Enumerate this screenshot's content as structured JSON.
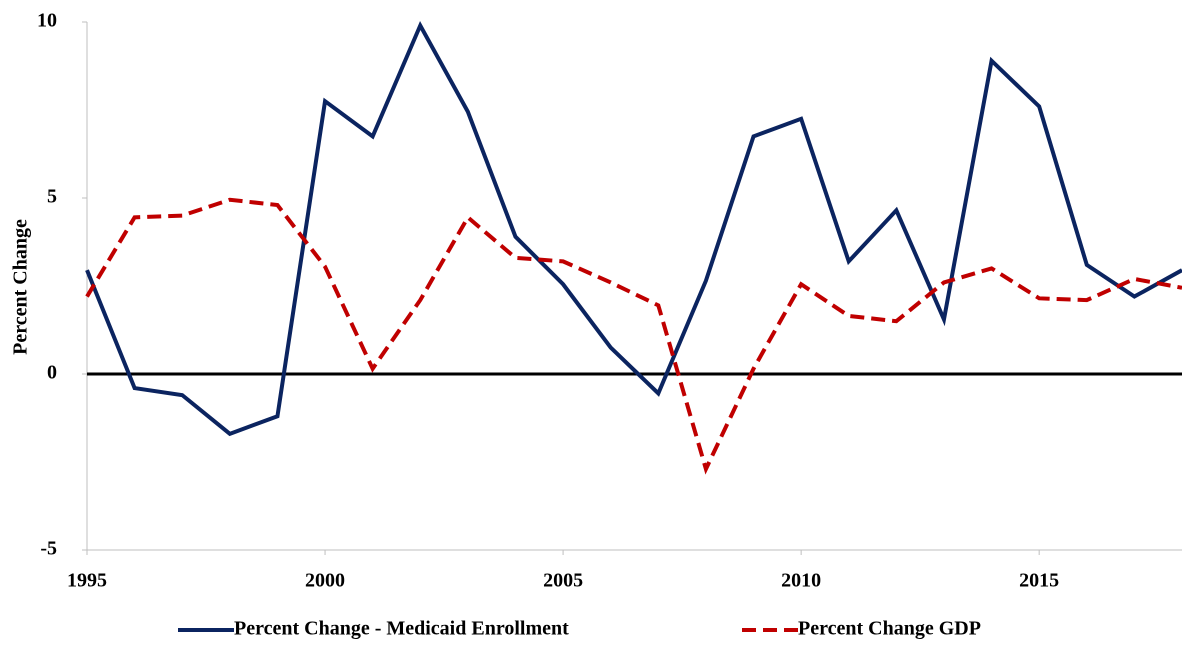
{
  "chart_data": {
    "type": "line",
    "ylabel": "Percent Change",
    "x": [
      1995,
      1996,
      1997,
      1998,
      1999,
      2000,
      2001,
      2002,
      2003,
      2004,
      2005,
      2006,
      2007,
      2008,
      2009,
      2010,
      2011,
      2012,
      2013,
      2014,
      2015,
      2016,
      2017,
      2018
    ],
    "series": [
      {
        "name": "Percent Change - Medicaid Enrollment",
        "color": "#0b2460",
        "dash": false,
        "values": [
          2.95,
          -0.4,
          -0.6,
          -1.7,
          -1.2,
          7.75,
          6.75,
          9.9,
          7.45,
          3.9,
          2.55,
          0.75,
          -0.55,
          2.65,
          6.75,
          7.25,
          3.2,
          4.65,
          1.55,
          8.9,
          7.6,
          3.1,
          2.2,
          2.95
        ]
      },
      {
        "name": "Percent Change GDP",
        "color": "#c00000",
        "dash": true,
        "values": [
          2.2,
          4.45,
          4.5,
          4.95,
          4.8,
          3.05,
          0.15,
          2.1,
          4.45,
          3.3,
          3.2,
          2.6,
          1.95,
          -2.7,
          0.15,
          2.55,
          1.65,
          1.5,
          2.6,
          3.0,
          2.15,
          2.1,
          2.7,
          2.45
        ]
      }
    ],
    "xlim": [
      1995,
      2018
    ],
    "xticks": [
      1995,
      2000,
      2005,
      2010,
      2015
    ],
    "ylim": [
      -5,
      10
    ],
    "yticks": [
      -5,
      0,
      5,
      10
    ],
    "zero_line": true,
    "legend": "bottom"
  }
}
